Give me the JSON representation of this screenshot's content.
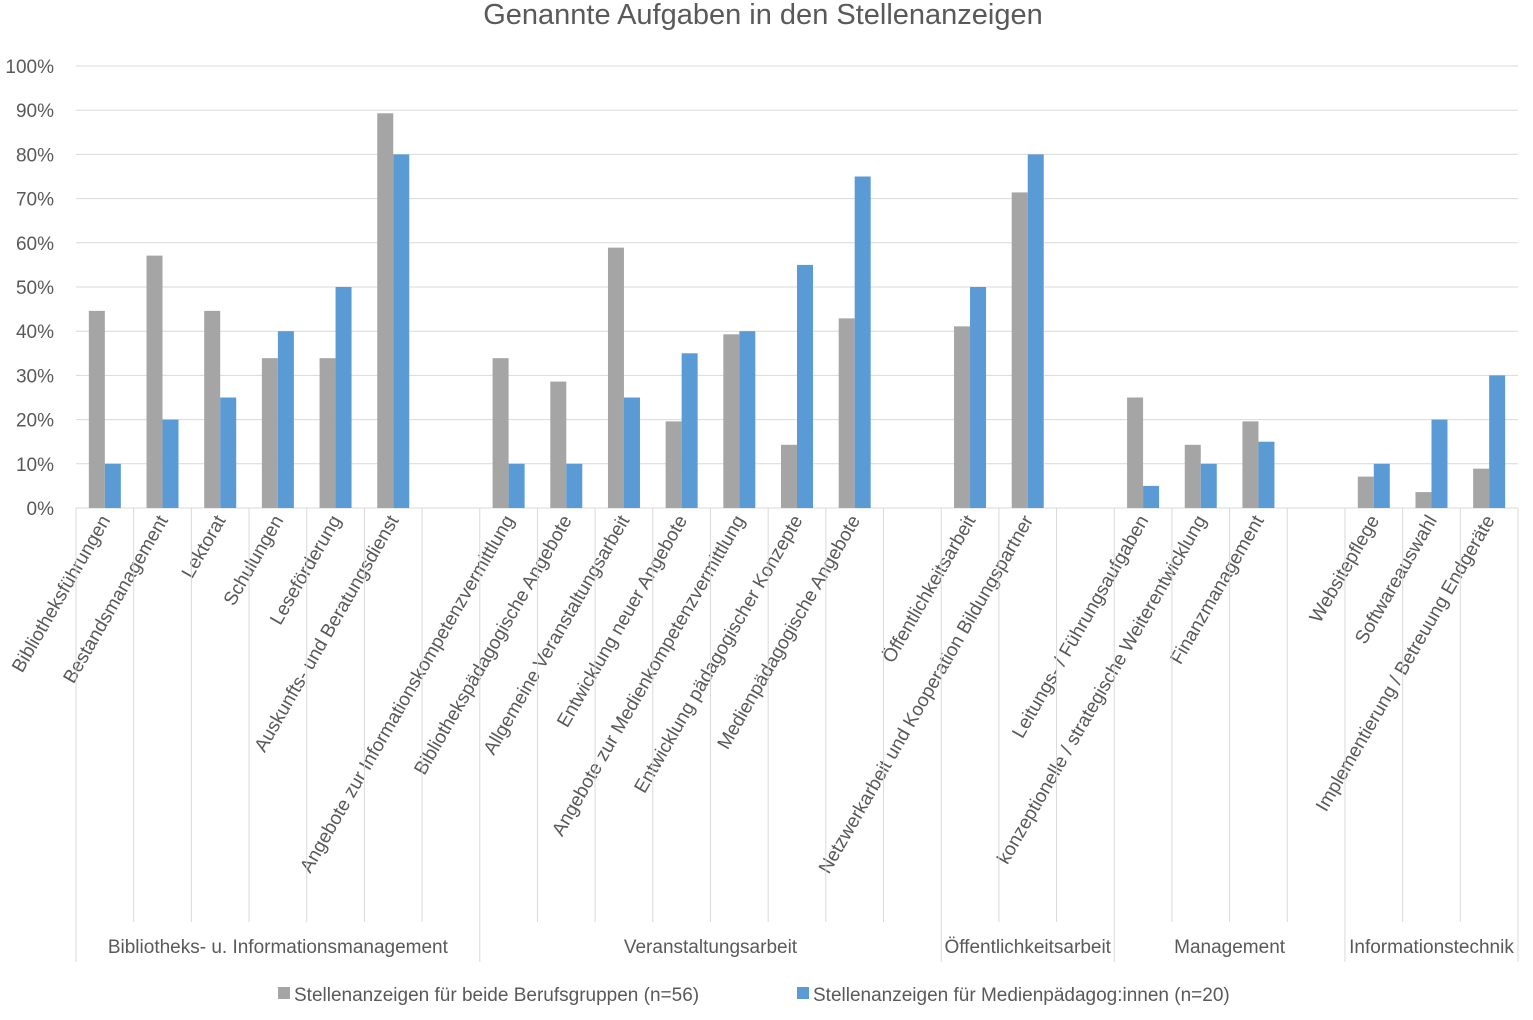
{
  "chart_data": {
    "type": "bar",
    "title": "Genannte Aufgaben in den Stellenanzeigen",
    "ylim": [
      0,
      100
    ],
    "yticks": [
      "0%",
      "10%",
      "20%",
      "30%",
      "40%",
      "50%",
      "60%",
      "70%",
      "80%",
      "90%",
      "100%"
    ],
    "grid": true,
    "legend_position": "bottom",
    "categories": [
      "Bibliotheksführungen",
      "Bestandsmanagement",
      "Lektorat",
      "Schulungen",
      "Leseförderung",
      "Auskunfts- und Beratungsdienst",
      "",
      "Angebote zur Informationskompetenzvermittlung",
      "Bibliothekspädagogische Angebote",
      "Allgemeine Veranstaltungsarbeit",
      "Entwicklung neuer Angebote",
      "Angebote zur Medienkompetenzvermittlung",
      "Entwicklung pädagogischer Konzepte",
      "Medienpädagogische Angebote",
      "",
      "Öffentlichkeitsarbeit",
      "Netzwerkarbeit und Kooperation Bildungspartner",
      "",
      "Leitungs- / Führungsaufgaben",
      "konzeptionelle / strategische Weiterentwicklung",
      "Finanzmanagement",
      "",
      "Websitepflege",
      "Softwareauswahl",
      "Implementierung / Betreuung Endgeräte"
    ],
    "groups": [
      {
        "label": "Bibliotheks- u. Informationsmanagement",
        "start": 0,
        "end": 7
      },
      {
        "label": "Veranstaltungsarbeit",
        "start": 7,
        "end": 15
      },
      {
        "label": "Öffentlichkeitsarbeit",
        "start": 15,
        "end": 18
      },
      {
        "label": "Management",
        "start": 18,
        "end": 22
      },
      {
        "label": "Informationstechnik",
        "start": 22,
        "end": 25
      }
    ],
    "series": [
      {
        "name": "Stellenanzeigen für beide Berufsgruppen (n=56)",
        "color": "#a5a5a5",
        "values": [
          44.6,
          57.1,
          44.6,
          33.9,
          33.9,
          89.3,
          null,
          33.9,
          28.6,
          58.9,
          19.6,
          39.3,
          14.3,
          42.9,
          null,
          41.1,
          71.4,
          null,
          25.0,
          14.3,
          19.6,
          null,
          7.1,
          3.6,
          8.9
        ]
      },
      {
        "name": "Stellenanzeigen für Medienpädagog:innen (n=20)",
        "color": "#5b9bd5",
        "values": [
          10,
          20,
          25,
          40,
          50,
          80,
          null,
          10,
          10,
          25,
          35,
          40,
          55,
          75,
          null,
          50,
          80,
          null,
          5,
          10,
          15,
          null,
          10,
          20,
          30
        ]
      }
    ]
  }
}
